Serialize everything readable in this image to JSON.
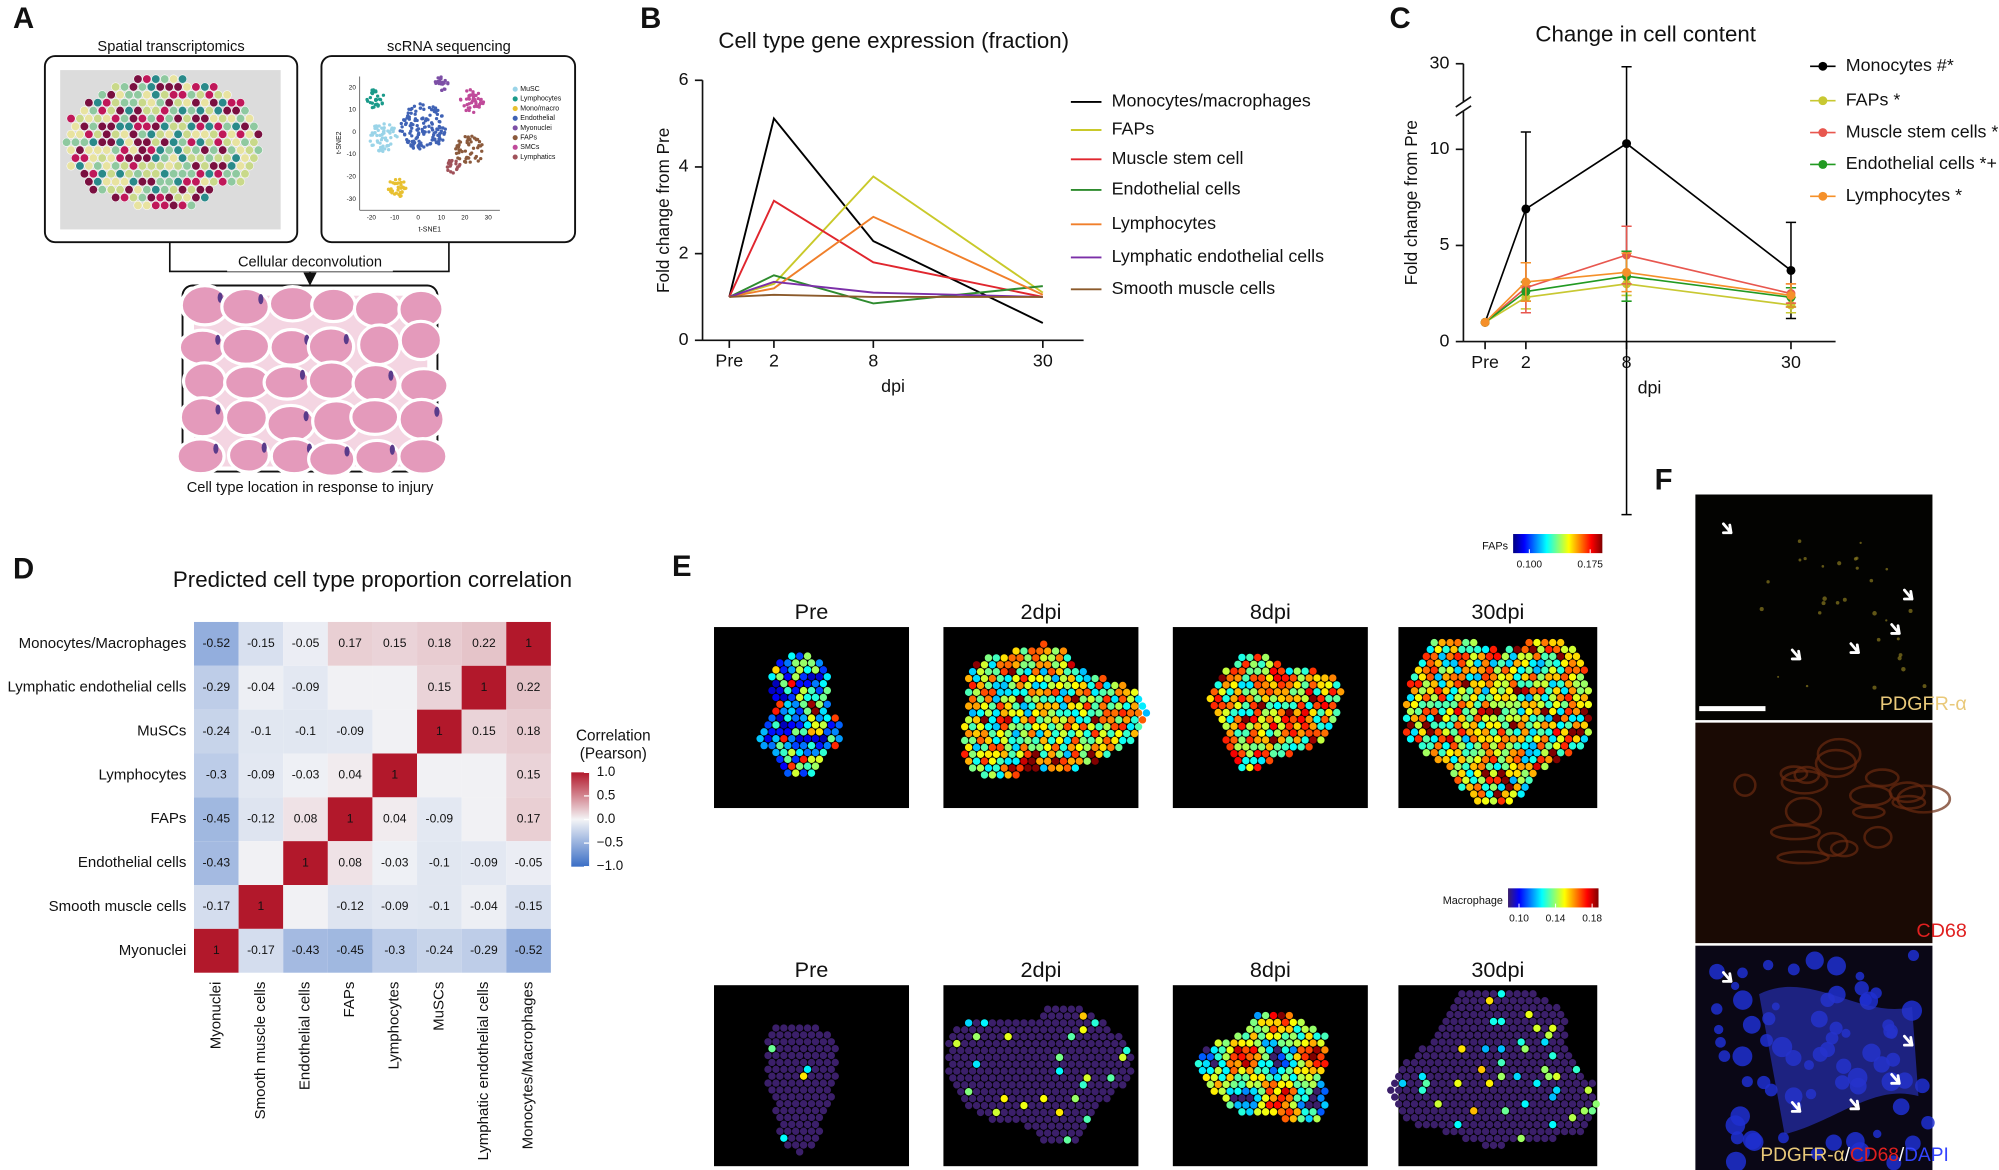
{
  "panel_letters": [
    "A",
    "B",
    "C",
    "D",
    "E",
    "F"
  ],
  "panel_a": {
    "boxes": [
      "Spatial transcriptomics",
      "scRNA sequencing"
    ],
    "connector": "Cellular deconvolution",
    "caption": "Cell type location in response to injury",
    "tsne": {
      "x_label": "t-SNE1",
      "y_label": "t-SNE2",
      "xlim": [
        -25,
        35
      ],
      "ylim": [
        -35,
        25
      ],
      "xticks": [
        -20,
        -10,
        0,
        10,
        20,
        30
      ],
      "yticks": [
        -30,
        -20,
        -10,
        0,
        10,
        20
      ],
      "legend": [
        {
          "name": "MuSC",
          "color": "#9ad4e8"
        },
        {
          "name": "Lymphocytes",
          "color": "#1a9a8a"
        },
        {
          "name": "Mono/macro",
          "color": "#e8c030"
        },
        {
          "name": "Endothelial",
          "color": "#3f62b5"
        },
        {
          "name": "Myonuclei",
          "color": "#7d4fa6"
        },
        {
          "name": "FAPs",
          "color": "#8b5a3c"
        },
        {
          "name": "SMCs",
          "color": "#c04a9a"
        },
        {
          "name": "Lymphatics",
          "color": "#a0525a"
        }
      ]
    }
  },
  "chart_data": [
    {
      "type": "line",
      "title": "Cell type gene expression (fraction)",
      "x_label": "dpi",
      "y_label": "Fold change from Pre",
      "categories": [
        "Pre",
        "2",
        "8",
        "30"
      ],
      "ylim": [
        0,
        6
      ],
      "yticks": [
        0,
        2,
        4,
        6
      ],
      "series": [
        {
          "name": "Monocytes/macrophages",
          "color": "#000000",
          "values": [
            1,
            5.12,
            2.29,
            0.4
          ]
        },
        {
          "name": "FAPs",
          "color": "#c9c92a",
          "values": [
            1,
            1.3,
            3.78,
            1.1
          ]
        },
        {
          "name": "Muscle stem cell",
          "color": "#e0262e",
          "values": [
            1,
            3.22,
            1.8,
            1.0
          ]
        },
        {
          "name": "Endothelial cells",
          "color": "#2e8b2e",
          "values": [
            1,
            1.5,
            0.85,
            1.25
          ]
        },
        {
          "name": "Lymphocytes",
          "color": "#f07f2a",
          "values": [
            1,
            1.2,
            2.85,
            1.05
          ]
        },
        {
          "name": "Lymphatic endothelial cells",
          "color": "#7b2fa8",
          "values": [
            1,
            1.35,
            1.1,
            1.0
          ]
        },
        {
          "name": "Smooth muscle cells",
          "color": "#8b5a2b",
          "values": [
            1,
            1.05,
            1.0,
            1.0
          ]
        }
      ]
    },
    {
      "type": "errorline",
      "title": "Change in cell content",
      "x_label": "dpi",
      "y_label": "Fold change from Pre",
      "categories": [
        "Pre",
        "2",
        "8",
        "30"
      ],
      "ylim": [
        0,
        30
      ],
      "yticks": [
        0,
        5,
        10,
        30
      ],
      "y_break": [
        12,
        25
      ],
      "series": [
        {
          "name": "Monocytes #*",
          "color": "#000000",
          "values": [
            1,
            6.9,
            10.3,
            3.7
          ],
          "errors": [
            null,
            4.0,
            19.3,
            2.5
          ]
        },
        {
          "name": "FAPs *",
          "color": "#c8c832",
          "values": [
            1,
            2.3,
            3.0,
            1.9
          ],
          "errors": [
            null,
            0.6,
            0.6,
            0.4
          ]
        },
        {
          "name": "Muscle stem cells *",
          "color": "#e8574f",
          "values": [
            1,
            2.8,
            4.5,
            2.5
          ],
          "errors": [
            null,
            1.3,
            1.5,
            0.5
          ]
        },
        {
          "name": "Endothelial cells *+",
          "color": "#229a22",
          "values": [
            1,
            2.6,
            3.4,
            2.3
          ],
          "errors": [
            null,
            0.5,
            1.3,
            0.5
          ]
        },
        {
          "name": "Lymphocytes *",
          "color": "#f5902a",
          "values": [
            1,
            3.1,
            3.6,
            2.4
          ],
          "errors": [
            null,
            1.0,
            1.0,
            0.6
          ]
        }
      ]
    },
    {
      "type": "heatmap",
      "title": "Predicted cell type proportion correlation",
      "rows": [
        "Monocytes/Macrophages",
        "Lymphatic endothelial cells",
        "MuSCs",
        "Lymphocytes",
        "FAPs",
        "Endothelial cells",
        "Smooth muscle cells",
        "Myonuclei"
      ],
      "columns": [
        "Myonuclei",
        "Smooth muscle cells",
        "Endothelial cells",
        "FAPs",
        "Lymphocytes",
        "MuSCs",
        "Lymphatic endothelial cells",
        "Monocytes/Macrophages"
      ],
      "values": [
        [
          -0.52,
          -0.15,
          -0.05,
          0.17,
          0.15,
          0.18,
          0.22,
          1
        ],
        [
          -0.29,
          -0.04,
          -0.09,
          null,
          null,
          0.15,
          1,
          0.22
        ],
        [
          -0.24,
          -0.1,
          -0.1,
          -0.09,
          null,
          1,
          0.15,
          0.18
        ],
        [
          -0.3,
          -0.09,
          -0.03,
          0.04,
          1,
          null,
          null,
          0.15
        ],
        [
          -0.45,
          -0.12,
          0.08,
          1,
          0.04,
          -0.09,
          null,
          0.17
        ],
        [
          -0.43,
          null,
          1,
          0.08,
          -0.03,
          -0.1,
          -0.09,
          -0.05
        ],
        [
          -0.17,
          1,
          null,
          -0.12,
          -0.09,
          -0.1,
          -0.04,
          -0.15
        ],
        [
          1,
          -0.17,
          -0.43,
          -0.45,
          -0.3,
          -0.24,
          -0.29,
          -0.52
        ]
      ],
      "colorbar": {
        "title": [
          "Correlation",
          "(Pearson)"
        ],
        "range": [
          -1,
          1
        ],
        "low_color": "#3a6ec6",
        "mid_color": "#f4f4f6",
        "high_color": "#b2182b",
        "ticks": [
          {
            "value": 1,
            "label": "1.0"
          },
          0.5,
          {
            "value": 0,
            "label": "0.0"
          },
          {
            "value": -0.5,
            "label": "−0.5"
          },
          {
            "value": -1,
            "label": "−1.0"
          }
        ]
      }
    }
  ],
  "panel_e": {
    "rows": [
      {
        "colorbar": {
          "label": "FAPs",
          "range": [
            0.08,
            0.19
          ],
          "ticks": [
            {
              "value": 0.1,
              "label": "0.100"
            },
            {
              "value": 0.175,
              "label": "0.175"
            }
          ]
        },
        "titles": [
          "Pre",
          "2dpi",
          "8dpi",
          "30dpi"
        ]
      },
      {
        "colorbar": {
          "label": "Macrophage",
          "range": [
            0.088,
            0.187
          ],
          "ticks": [
            {
              "value": 0.1,
              "label": "0.10"
            },
            0.14,
            0.18
          ]
        },
        "titles": [
          "Pre",
          "2dpi",
          "8dpi",
          "30dpi"
        ]
      }
    ]
  },
  "panel_f": {
    "labels": [
      "PDGFR-α",
      "CD68"
    ],
    "merge": [
      "PDGFR-α",
      "/",
      "CD68",
      "/",
      "DAPI"
    ]
  }
}
